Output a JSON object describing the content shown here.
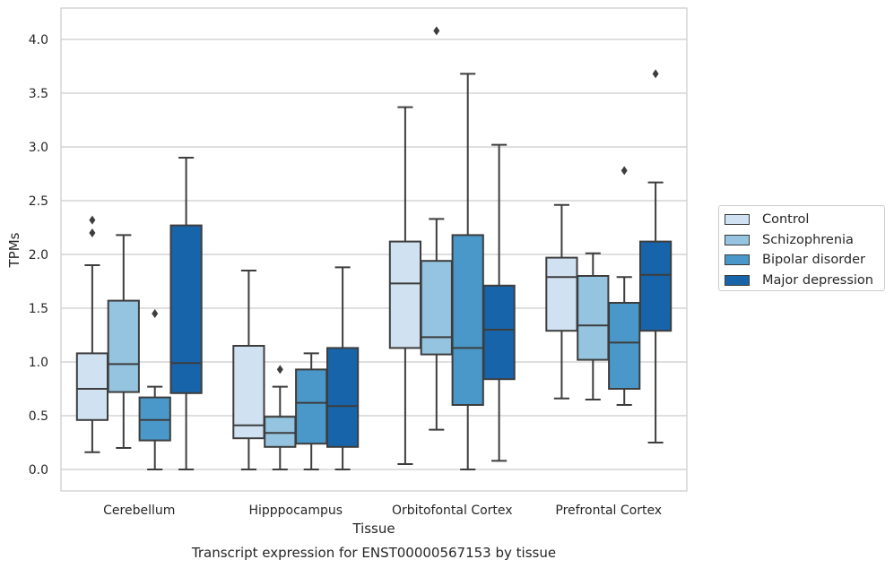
{
  "chart_data": {
    "type": "box",
    "title": "",
    "caption": "Transcript expression for ENST00000567153 by tissue",
    "xlabel": "Tissue",
    "ylabel": "TPMs",
    "ylim": [
      -0.2,
      4.3
    ],
    "yticks": [
      0.0,
      0.5,
      1.0,
      1.5,
      2.0,
      2.5,
      3.0,
      3.5,
      4.0
    ],
    "ytick_labels": [
      "0.0",
      "0.5",
      "1.0",
      "1.5",
      "2.0",
      "2.5",
      "3.0",
      "3.5",
      "4.0"
    ],
    "grid": "horizontal",
    "legend_position": "right",
    "categories": [
      "Cerebellum",
      "Hipppocampus",
      "Orbitofontal Cortex",
      "Prefrontal Cortex"
    ],
    "series": [
      {
        "name": "Control",
        "color": "#d0e1f2",
        "boxes": [
          {
            "whisker_low": 0.16,
            "q1": 0.46,
            "median": 0.75,
            "q3": 1.08,
            "whisker_high": 1.9,
            "outliers": [
              2.2,
              2.32
            ]
          },
          {
            "whisker_low": 0.0,
            "q1": 0.29,
            "median": 0.41,
            "q3": 1.15,
            "whisker_high": 1.85,
            "outliers": []
          },
          {
            "whisker_low": 0.05,
            "q1": 1.13,
            "median": 1.73,
            "q3": 2.12,
            "whisker_high": 3.37,
            "outliers": []
          },
          {
            "whisker_low": 0.66,
            "q1": 1.29,
            "median": 1.79,
            "q3": 1.97,
            "whisker_high": 2.46,
            "outliers": []
          }
        ]
      },
      {
        "name": "Schizophrenia",
        "color": "#94c4df",
        "boxes": [
          {
            "whisker_low": 0.2,
            "q1": 0.72,
            "median": 0.98,
            "q3": 1.57,
            "whisker_high": 2.18,
            "outliers": []
          },
          {
            "whisker_low": 0.0,
            "q1": 0.21,
            "median": 0.34,
            "q3": 0.49,
            "whisker_high": 0.77,
            "outliers": [
              0.93
            ]
          },
          {
            "whisker_low": 0.37,
            "q1": 1.07,
            "median": 1.23,
            "q3": 1.94,
            "whisker_high": 2.33,
            "outliers": [
              4.08
            ]
          },
          {
            "whisker_low": 0.65,
            "q1": 1.02,
            "median": 1.34,
            "q3": 1.8,
            "whisker_high": 2.01,
            "outliers": []
          }
        ]
      },
      {
        "name": "Bipolar disorder",
        "color": "#4a98c9",
        "boxes": [
          {
            "whisker_low": 0.0,
            "q1": 0.27,
            "median": 0.46,
            "q3": 0.67,
            "whisker_high": 0.77,
            "outliers": [
              1.45
            ]
          },
          {
            "whisker_low": 0.0,
            "q1": 0.24,
            "median": 0.62,
            "q3": 0.93,
            "whisker_high": 1.08,
            "outliers": []
          },
          {
            "whisker_low": 0.0,
            "q1": 0.6,
            "median": 1.13,
            "q3": 2.18,
            "whisker_high": 3.68,
            "outliers": []
          },
          {
            "whisker_low": 0.6,
            "q1": 0.75,
            "median": 1.18,
            "q3": 1.55,
            "whisker_high": 1.79,
            "outliers": [
              2.78
            ]
          }
        ]
      },
      {
        "name": "Major depression",
        "color": "#1764ab",
        "boxes": [
          {
            "whisker_low": 0.0,
            "q1": 0.71,
            "median": 0.99,
            "q3": 2.27,
            "whisker_high": 2.9,
            "outliers": []
          },
          {
            "whisker_low": 0.0,
            "q1": 0.21,
            "median": 0.59,
            "q3": 1.13,
            "whisker_high": 1.88,
            "outliers": []
          },
          {
            "whisker_low": 0.08,
            "q1": 0.84,
            "median": 1.3,
            "q3": 1.71,
            "whisker_high": 3.02,
            "outliers": []
          },
          {
            "whisker_low": 0.25,
            "q1": 1.29,
            "median": 1.81,
            "q3": 2.12,
            "whisker_high": 2.67,
            "outliers": [
              3.68
            ]
          }
        ]
      }
    ]
  }
}
